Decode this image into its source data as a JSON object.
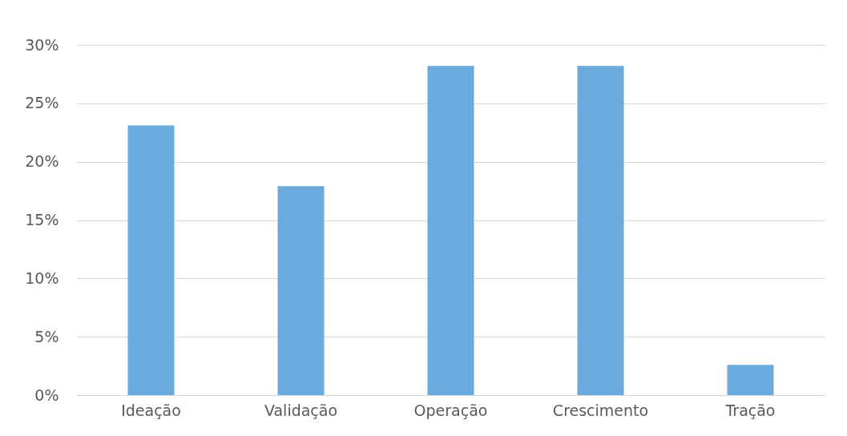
{
  "chart_data": {
    "type": "bar",
    "categories": [
      "Ideação",
      "Validação",
      "Operação",
      "Crescimento",
      "Tração"
    ],
    "values": [
      23.1,
      17.9,
      28.2,
      28.2,
      2.6
    ],
    "color": "#6aaadc",
    "ylim": [
      0,
      30
    ],
    "yticks": [
      {
        "value": 0,
        "label": "0%"
      },
      {
        "value": 5,
        "label": "5%"
      },
      {
        "value": 10,
        "label": "10%"
      },
      {
        "value": 15,
        "label": "15%"
      },
      {
        "value": 20,
        "label": "20%"
      },
      {
        "value": 25,
        "label": "25%"
      },
      {
        "value": 30,
        "label": "30%"
      }
    ],
    "grid": "y"
  }
}
